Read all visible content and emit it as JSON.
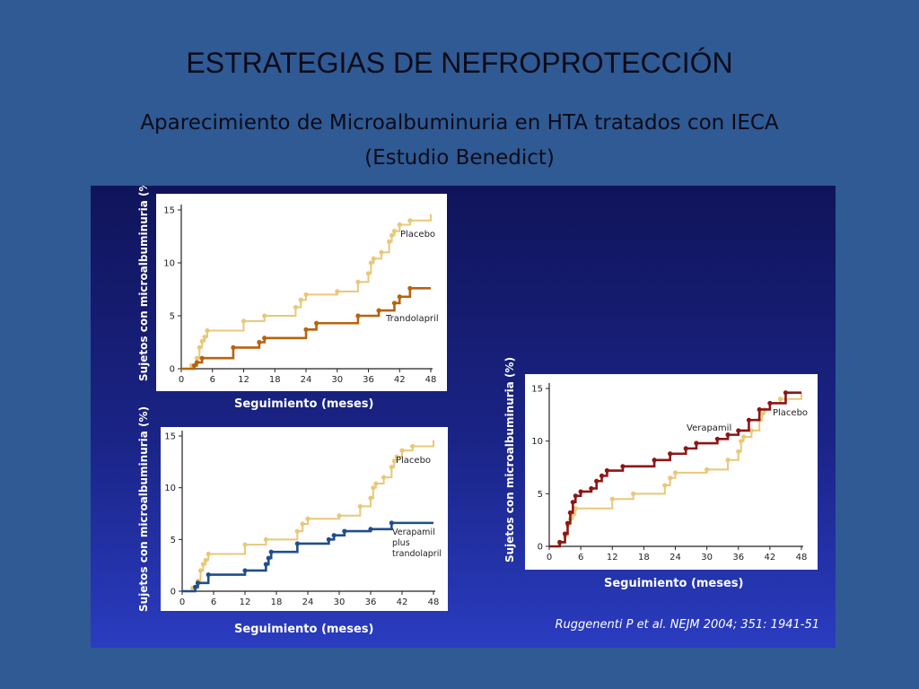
{
  "slide": {
    "title": "ESTRATEGIAS DE NEFROPROTECCIÓN",
    "subtitle_line1": "Aparecimiento de Microalbuminuria en HTA tratados con IECA",
    "subtitle_line2": "(Estudio Benedict)",
    "citation": "Ruggenenti P et al. NEJM 2004; 351: 1941-51"
  },
  "colors": {
    "placebo": "#e8c878",
    "trandolapril": "#b8620e",
    "combo": "#1f4e8c",
    "verapamil": "#8c1616",
    "axis": "#222222"
  },
  "chart_data": [
    {
      "type": "line",
      "title": "",
      "xlabel": "Seguimiento (meses)",
      "ylabel": "Sujetos con microalbuminuria (%)",
      "xlim": [
        0,
        48
      ],
      "ylim": [
        0,
        15
      ],
      "xticks": [
        0,
        6,
        12,
        18,
        24,
        30,
        36,
        42,
        48
      ],
      "yticks": [
        0,
        5,
        10,
        15
      ],
      "series": [
        {
          "name": "Placebo",
          "x": [
            0,
            2,
            3,
            3.5,
            4,
            4.5,
            5,
            12,
            16,
            22,
            23,
            24,
            30,
            34,
            36,
            36.5,
            37,
            38.5,
            40,
            40.5,
            41,
            42,
            44,
            48
          ],
          "y": [
            0,
            0.3,
            1,
            2,
            2.6,
            3,
            3.6,
            4.5,
            5,
            5.8,
            6.5,
            7,
            7.3,
            8.2,
            9,
            10,
            10.4,
            11,
            12,
            12.6,
            13,
            13.6,
            14,
            14.6
          ]
        },
        {
          "name": "Trandolapril",
          "x": [
            0,
            2.5,
            3,
            4,
            10,
            15,
            16,
            24,
            26,
            34,
            38,
            41,
            42,
            44,
            48
          ],
          "y": [
            0,
            0.3,
            0.6,
            1,
            2,
            2.5,
            2.9,
            3.7,
            4.3,
            5,
            5.5,
            6.2,
            6.8,
            7.6,
            7.6
          ]
        }
      ]
    },
    {
      "type": "line",
      "title": "",
      "xlabel": "Seguimiento (meses)",
      "ylabel": "Sujetos con microalbuminuria (%)",
      "xlim": [
        0,
        48
      ],
      "ylim": [
        0,
        15
      ],
      "xticks": [
        0,
        6,
        12,
        18,
        24,
        30,
        36,
        42,
        48
      ],
      "yticks": [
        0,
        5,
        10,
        15
      ],
      "series": [
        {
          "name": "Placebo",
          "x": [
            0,
            2,
            3,
            3.5,
            4,
            4.5,
            5,
            12,
            16,
            22,
            23,
            24,
            30,
            34,
            36,
            36.5,
            37,
            38.5,
            40,
            40.5,
            41,
            42,
            44,
            48
          ],
          "y": [
            0,
            0.3,
            1,
            2,
            2.6,
            3,
            3.6,
            4.5,
            5,
            5.8,
            6.5,
            7,
            7.3,
            8.2,
            9,
            10,
            10.4,
            11,
            12,
            12.6,
            13,
            13.6,
            14,
            14.6
          ]
        },
        {
          "name": "Verapamil plus trandolapril",
          "x": [
            0,
            2.5,
            3,
            5,
            12,
            16,
            16.5,
            17,
            22,
            28,
            29,
            31,
            36,
            40,
            48
          ],
          "y": [
            0,
            0.4,
            0.8,
            1.6,
            2,
            2.6,
            3.2,
            3.8,
            4.6,
            5,
            5.4,
            5.8,
            6,
            6.6,
            6.6
          ]
        }
      ]
    },
    {
      "type": "line",
      "title": "",
      "xlabel": "Seguimiento (meses)",
      "ylabel": "Sujetos con microalbuminuria (%)",
      "xlim": [
        0,
        48
      ],
      "ylim": [
        0,
        15
      ],
      "xticks": [
        0,
        6,
        12,
        18,
        24,
        30,
        36,
        42,
        48
      ],
      "yticks": [
        0,
        5,
        10,
        15
      ],
      "series": [
        {
          "name": "Placebo",
          "x": [
            0,
            2,
            3,
            3.5,
            4,
            4.5,
            5,
            12,
            16,
            22,
            23,
            24,
            30,
            34,
            36,
            36.5,
            37,
            38.5,
            40,
            40.5,
            41,
            42,
            44,
            48
          ],
          "y": [
            0,
            0.3,
            1,
            2,
            2.6,
            3,
            3.6,
            4.5,
            5,
            5.8,
            6.5,
            7,
            7.3,
            8.2,
            9,
            10,
            10.4,
            11,
            12,
            12.6,
            13,
            13.6,
            14,
            14.6
          ]
        },
        {
          "name": "Verapamil",
          "x": [
            0,
            2,
            3,
            3.5,
            4,
            4.5,
            5,
            6,
            8,
            9,
            10,
            11,
            14,
            20,
            23,
            26,
            28,
            32,
            34,
            36,
            38,
            40,
            42,
            45,
            48
          ],
          "y": [
            0,
            0.4,
            1.2,
            2.2,
            3.2,
            4.2,
            4.8,
            5.2,
            5.5,
            6.2,
            6.7,
            7.2,
            7.6,
            8.2,
            8.8,
            9.3,
            9.8,
            10.2,
            10.6,
            11,
            12,
            13,
            13.6,
            14.6,
            14.6
          ]
        }
      ]
    }
  ]
}
